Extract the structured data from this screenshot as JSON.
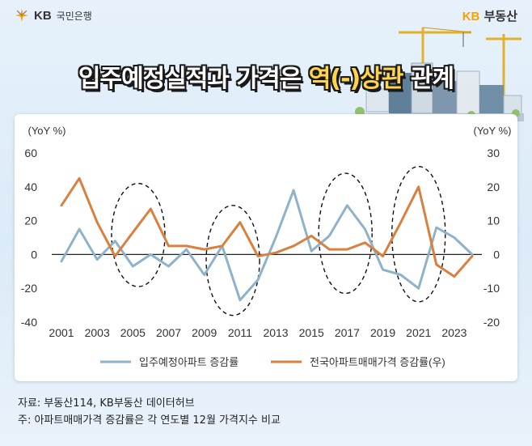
{
  "header": {
    "logo_left_kb": "KB",
    "logo_left_text": "국민은행",
    "logo_right_kb": "KB",
    "logo_right_text": "부동산"
  },
  "title": {
    "part1": "입주예정실적과 가격은 ",
    "highlight": "역(-)상관",
    "part2": " 관계"
  },
  "notes": {
    "source": "자료: 부동산114, KB부동산 데이터허브",
    "note": "주: 아파트매매가격 증감률은 각 연도별 12월 가격지수 비교"
  },
  "colors": {
    "series_supply": "#8fb2cb",
    "series_price": "#d9803f"
  },
  "chart_data": {
    "type": "line",
    "title": "",
    "y_left_label": "(YoY %)",
    "y_right_label": "(YoY %)",
    "ylim_left": [
      -40,
      60
    ],
    "ylim_right": [
      -20,
      30
    ],
    "yticks_left": [
      60,
      40,
      20,
      0,
      -20,
      -40
    ],
    "yticks_right": [
      30,
      20,
      10,
      0,
      -10,
      -20
    ],
    "x": [
      2001,
      2002,
      2003,
      2004,
      2005,
      2006,
      2007,
      2008,
      2009,
      2010,
      2011,
      2012,
      2013,
      2014,
      2015,
      2016,
      2017,
      2018,
      2019,
      2020,
      2021,
      2022,
      2023,
      2024
    ],
    "xticks": [
      "2001",
      "2003",
      "2005",
      "2007",
      "2009",
      "2011",
      "2013",
      "2015",
      "2017",
      "2019",
      "2021",
      "2023"
    ],
    "grid": false,
    "legend": "bottom",
    "series": [
      {
        "name": "입주예정아파트 증감률",
        "axis": "left",
        "values": [
          -4,
          15,
          -3,
          8,
          -7,
          0,
          -7,
          3,
          -12,
          5,
          -27,
          -15,
          10,
          38,
          2,
          11,
          29,
          15,
          -9,
          -12,
          -20,
          16,
          10,
          0
        ]
      },
      {
        "name": "전국아파트매매가격 증감률(우)",
        "axis": "right",
        "values": [
          14.5,
          22.5,
          9.5,
          -0.5,
          6.5,
          13.5,
          2.5,
          2.5,
          1.5,
          2.5,
          9.5,
          -0.5,
          0.5,
          2.5,
          5.5,
          1.5,
          1.5,
          3.5,
          -0.5,
          9.5,
          20,
          -3,
          -6.5,
          -0.5
        ]
      }
    ],
    "annotations": [
      "highlight-2005",
      "highlight-2010",
      "highlight-2017",
      "highlight-2021"
    ]
  }
}
